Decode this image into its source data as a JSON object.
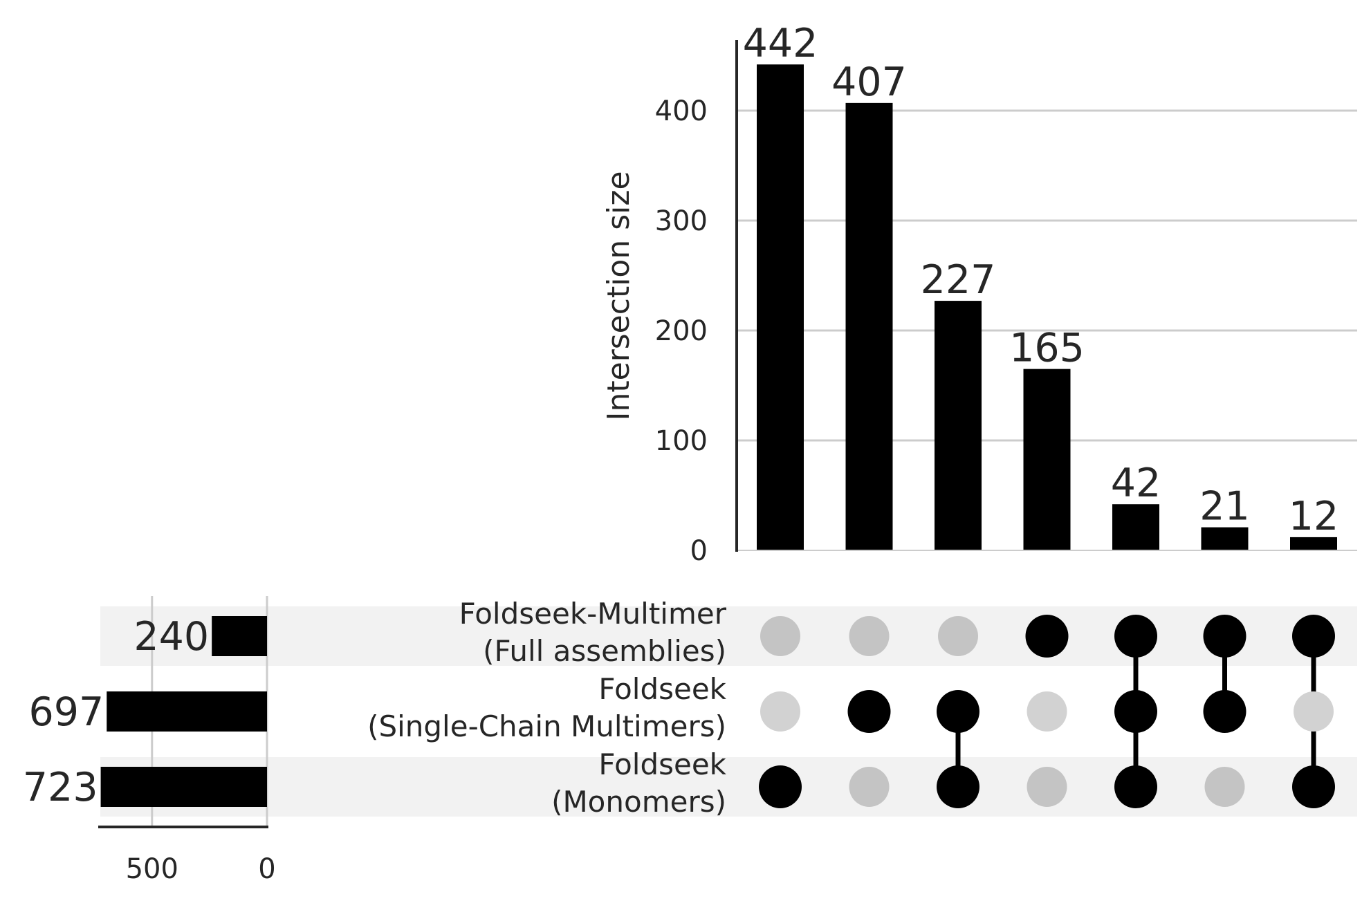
{
  "chart_data": {
    "type": "upset",
    "ylabel": "Intersection size",
    "ylim": [
      0,
      470
    ],
    "yticks": [
      0,
      100,
      200,
      300,
      400
    ],
    "grid": true,
    "sets": [
      {
        "name": "Foldseek-Multimer (Full assemblies)",
        "label_lines": [
          "Foldseek-Multimer",
          "(Full assemblies)"
        ],
        "size": 240
      },
      {
        "name": "Foldseek (Single-Chain Multimers)",
        "label_lines": [
          "Foldseek",
          "(Single-Chain Multimers)"
        ],
        "size": 697
      },
      {
        "name": "Foldseek (Monomers)",
        "label_lines": [
          "Foldseek",
          "(Monomers)"
        ],
        "size": 723
      }
    ],
    "set_size_xticks": [
      500,
      0
    ],
    "set_size_xlim": [
      0,
      723
    ],
    "intersections": [
      {
        "size": 442,
        "members": [
          false,
          false,
          true
        ]
      },
      {
        "size": 407,
        "members": [
          false,
          true,
          false
        ]
      },
      {
        "size": 227,
        "members": [
          false,
          true,
          true
        ]
      },
      {
        "size": 165,
        "members": [
          true,
          false,
          false
        ]
      },
      {
        "size": 42,
        "members": [
          true,
          true,
          true
        ]
      },
      {
        "size": 21,
        "members": [
          true,
          true,
          false
        ]
      },
      {
        "size": 12,
        "members": [
          true,
          false,
          true
        ]
      }
    ]
  },
  "colors": {
    "bar": "#000000",
    "dot_active": "#000000",
    "dot_inactive_dark": "#c4c4c4",
    "dot_inactive_light": "#d2d2d2",
    "stripe": "#f2f2f2",
    "grid": "#cccccc",
    "text": "#262626"
  }
}
